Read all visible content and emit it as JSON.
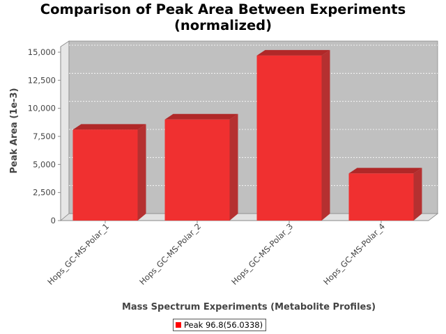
{
  "chart_data": {
    "type": "bar",
    "title": "Comparison of Peak Area Between Experiments",
    "subtitle": "(normalized)",
    "xlabel": "Mass Spectrum Experiments (Metabolite Profiles)",
    "ylabel": "Peak Area (1e-3)",
    "categories": [
      "Hops_GC-MS-Polar_1",
      "Hops_GC-MS-Polar_2",
      "Hops_GC-MS-Polar_3",
      "Hops_GC-MS-Polar_4"
    ],
    "series": [
      {
        "name": "Peak 96.8(56.0338)",
        "values": [
          8100,
          9000,
          14700,
          4200
        ]
      }
    ],
    "ylim": [
      0,
      15000
    ],
    "yticks": [
      "0",
      "2,500",
      "5,000",
      "7,500",
      "10,000",
      "12,500",
      "15,000"
    ],
    "grid": true,
    "legend_position": "bottom",
    "colors": {
      "bar": "#f03030",
      "bar_top": "#b02828",
      "bar_side": "#b53030",
      "plot_bg": "#c0c0c0"
    }
  }
}
